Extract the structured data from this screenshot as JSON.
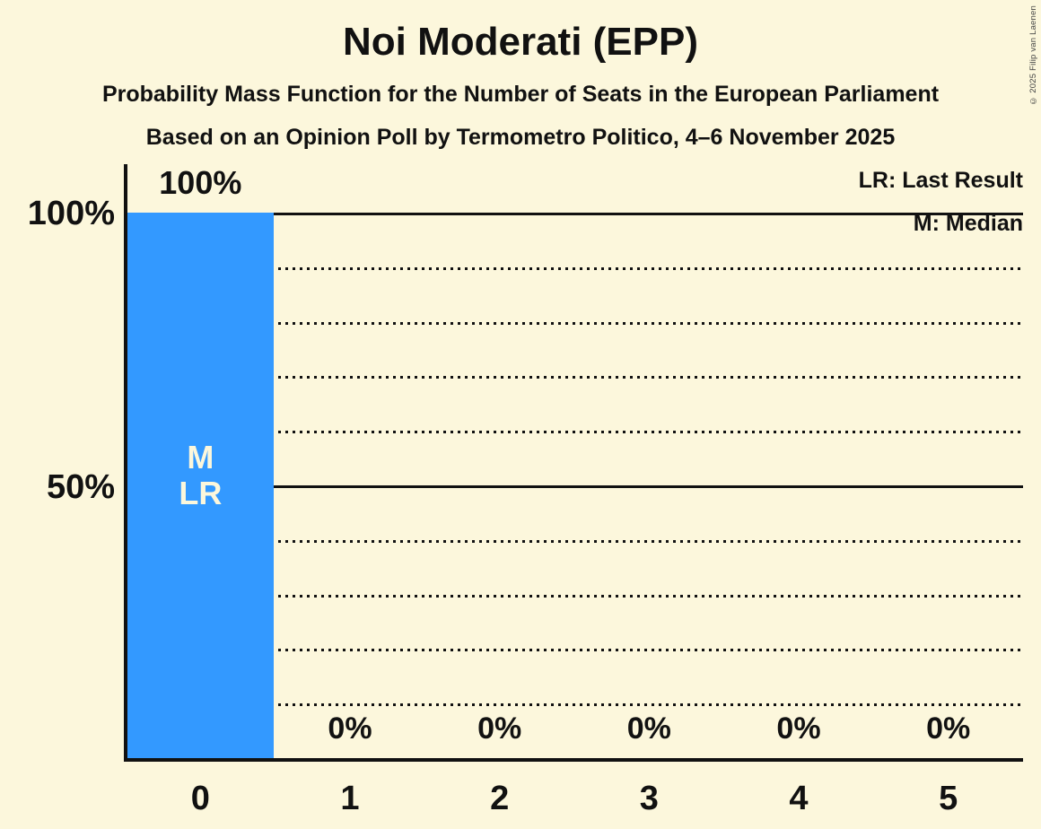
{
  "title": "Noi Moderati (EPP)",
  "subtitle1": "Probability Mass Function for the Number of Seats in the European Parliament",
  "subtitle2": "Based on an Opinion Poll by Termometro Politico, 4–6 November 2025",
  "copyright": "© 2025 Filip van Laenen",
  "legend": {
    "last_result": "LR: Last Result",
    "median": "M: Median"
  },
  "colors": {
    "background": "#FCF7DC",
    "bar": "#3399FF",
    "text": "#111111",
    "bar_label_text": "#FCF7DC",
    "copyright_text": "#444444"
  },
  "chart_data": {
    "type": "bar",
    "title": "Noi Moderati (EPP)",
    "xlabel": "",
    "ylabel": "",
    "categories": [
      "0",
      "1",
      "2",
      "3",
      "4",
      "5"
    ],
    "values": [
      100,
      0,
      0,
      0,
      0,
      0
    ],
    "value_labels": [
      "100%",
      "0%",
      "0%",
      "0%",
      "0%",
      "0%"
    ],
    "ylim": [
      0,
      100
    ],
    "y_axis_labels": [
      "100%",
      "50%"
    ],
    "y_axis_label_values": [
      100,
      50
    ],
    "solid_lines_pct": [
      100,
      50
    ],
    "dotted_gridlines_pct": [
      90,
      80,
      70,
      60,
      40,
      30,
      20,
      10
    ],
    "grid": "dotted-horizontal",
    "legend_position": "top-right",
    "median_seat": "0",
    "last_result_seat": "0",
    "bar_annotations": [
      "M",
      "LR"
    ],
    "annotated_bar_index": 0
  }
}
